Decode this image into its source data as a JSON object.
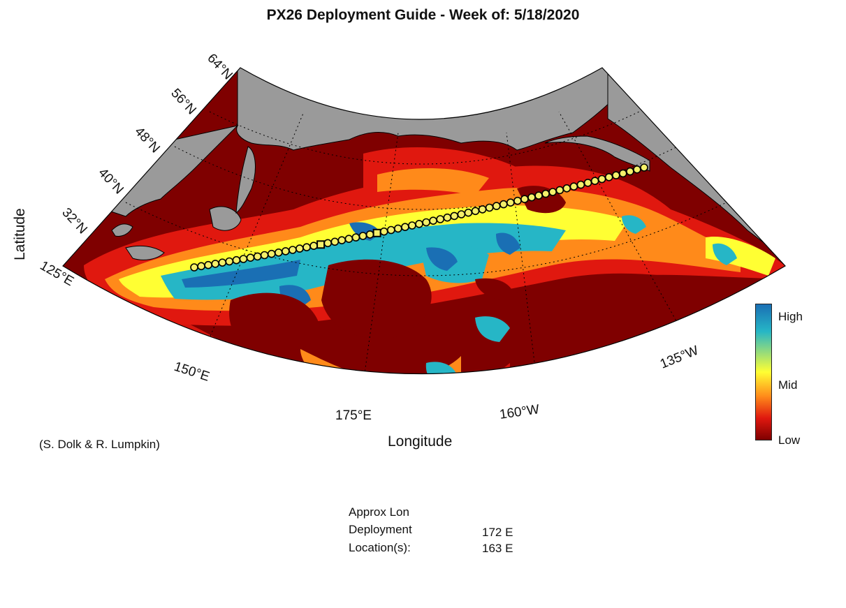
{
  "title": "PX26 Deployment Guide - Week of: 5/18/2020",
  "axes": {
    "xlabel": "Longitude",
    "ylabel": "Latitude"
  },
  "lat_ticks": [
    "64°N",
    "56°N",
    "48°N",
    "40°N",
    "32°N"
  ],
  "lon_ticks": [
    "125°E",
    "150°E",
    "175°E",
    "160°W",
    "135°W"
  ],
  "credit": "(S. Dolk & R. Lumpkin)",
  "colorbar": {
    "high": "High",
    "mid": "Mid",
    "low": "Low",
    "colors": [
      "#1a75b5",
      "#23b5c8",
      "#ffff33",
      "#ff7a1a",
      "#d81c10",
      "#7f0000"
    ]
  },
  "deployment": {
    "line1": "Approx Lon",
    "line2": "Deployment",
    "line3": "Location(s):",
    "locations": [
      "172 E",
      "163 E"
    ]
  },
  "colors": {
    "land": "#9a9a9a",
    "low": "#7f0000",
    "track_fill": "#f4f06a"
  }
}
